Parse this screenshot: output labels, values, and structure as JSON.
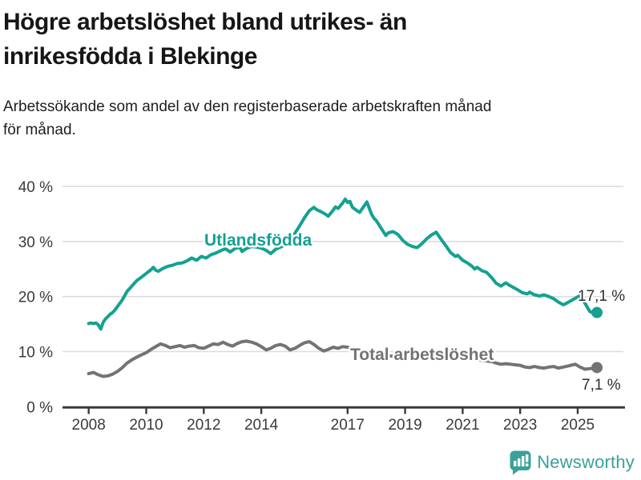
{
  "header": {
    "title_lines": [
      "Högre arbetslöshet bland utrikes- än",
      "inrikesfödda i Blekinge"
    ],
    "subtitle_lines": [
      "Arbetssökande som andel av den registerbaserade arbetskraften månad",
      "för månad."
    ]
  },
  "colors": {
    "accent_teal": "#14a191",
    "series_gray": "#737373",
    "gridline": "#dcdcdc",
    "axis": "#3a3a3a",
    "value_label_text": "#2e2e2e",
    "brand_teal": "#3aa19a"
  },
  "chart_data": {
    "type": "line",
    "x_unit": "decimal year (monthly samples)",
    "xlim": [
      2008,
      2026
    ],
    "ylim": [
      0,
      40
    ],
    "grid": "horizontal",
    "y_ticks": [
      {
        "v": 0,
        "label": "0 %"
      },
      {
        "v": 10,
        "label": "10 %"
      },
      {
        "v": 20,
        "label": "20 %"
      },
      {
        "v": 30,
        "label": "30 %"
      },
      {
        "v": 40,
        "label": "40 %"
      }
    ],
    "x_ticks": [
      {
        "t": 2008,
        "label": "2008"
      },
      {
        "t": 2010,
        "label": "2010"
      },
      {
        "t": 2012,
        "label": "2012"
      },
      {
        "t": 2014,
        "label": "2014"
      },
      {
        "t": 2017,
        "label": "2017"
      },
      {
        "t": 2019,
        "label": "2019"
      },
      {
        "t": 2021,
        "label": "2021"
      },
      {
        "t": 2023,
        "label": "2023"
      },
      {
        "t": 2025,
        "label": "2025"
      }
    ],
    "series": [
      {
        "name": "Utlandsfödda",
        "color": "#14a191",
        "end_label": "17,1 %",
        "end_value": 17.1,
        "points": [
          [
            2008.0,
            15.1
          ],
          [
            2008.08,
            15.2
          ],
          [
            2008.17,
            15.1
          ],
          [
            2008.25,
            15.2
          ],
          [
            2008.33,
            14.9
          ],
          [
            2008.42,
            14.1
          ],
          [
            2008.5,
            15.3
          ],
          [
            2008.58,
            15.9
          ],
          [
            2008.67,
            16.4
          ],
          [
            2008.75,
            16.8
          ],
          [
            2008.83,
            17.1
          ],
          [
            2008.92,
            17.6
          ],
          [
            2009.0,
            18.2
          ],
          [
            2009.17,
            19.4
          ],
          [
            2009.33,
            20.9
          ],
          [
            2009.5,
            21.9
          ],
          [
            2009.67,
            22.9
          ],
          [
            2009.83,
            23.5
          ],
          [
            2010.0,
            24.2
          ],
          [
            2010.17,
            24.9
          ],
          [
            2010.25,
            25.3
          ],
          [
            2010.33,
            24.8
          ],
          [
            2010.42,
            24.6
          ],
          [
            2010.58,
            25.1
          ],
          [
            2010.75,
            25.5
          ],
          [
            2010.92,
            25.7
          ],
          [
            2011.08,
            26.0
          ],
          [
            2011.25,
            26.1
          ],
          [
            2011.42,
            26.5
          ],
          [
            2011.58,
            27.0
          ],
          [
            2011.75,
            26.6
          ],
          [
            2011.92,
            27.3
          ],
          [
            2012.08,
            27.0
          ],
          [
            2012.25,
            27.6
          ],
          [
            2012.42,
            27.9
          ],
          [
            2012.58,
            28.3
          ],
          [
            2012.75,
            28.7
          ],
          [
            2012.92,
            28.1
          ],
          [
            2013.08,
            28.7
          ],
          [
            2013.25,
            29.0
          ],
          [
            2013.33,
            28.2
          ],
          [
            2013.5,
            28.8
          ],
          [
            2013.67,
            29.1
          ],
          [
            2013.83,
            29.0
          ],
          [
            2014.0,
            28.8
          ],
          [
            2014.17,
            28.4
          ],
          [
            2014.33,
            27.8
          ],
          [
            2014.5,
            28.6
          ],
          [
            2014.67,
            29.0
          ],
          [
            2014.83,
            29.4
          ],
          [
            2015.0,
            30.2
          ],
          [
            2015.17,
            31.5
          ],
          [
            2015.33,
            32.8
          ],
          [
            2015.5,
            34.3
          ],
          [
            2015.67,
            35.6
          ],
          [
            2015.83,
            36.2
          ],
          [
            2015.92,
            35.8
          ],
          [
            2016.08,
            35.4
          ],
          [
            2016.25,
            34.9
          ],
          [
            2016.33,
            34.6
          ],
          [
            2016.5,
            35.7
          ],
          [
            2016.58,
            36.3
          ],
          [
            2016.67,
            36.0
          ],
          [
            2016.83,
            37.0
          ],
          [
            2016.92,
            37.7
          ],
          [
            2017.0,
            37.1
          ],
          [
            2017.08,
            37.3
          ],
          [
            2017.17,
            36.2
          ],
          [
            2017.33,
            35.6
          ],
          [
            2017.42,
            35.3
          ],
          [
            2017.58,
            36.5
          ],
          [
            2017.67,
            37.2
          ],
          [
            2017.83,
            35.0
          ],
          [
            2017.92,
            34.2
          ],
          [
            2018.0,
            33.8
          ],
          [
            2018.17,
            32.4
          ],
          [
            2018.33,
            31.1
          ],
          [
            2018.42,
            31.6
          ],
          [
            2018.58,
            31.8
          ],
          [
            2018.75,
            31.3
          ],
          [
            2018.92,
            30.2
          ],
          [
            2019.08,
            29.5
          ],
          [
            2019.25,
            29.1
          ],
          [
            2019.42,
            28.9
          ],
          [
            2019.58,
            29.6
          ],
          [
            2019.75,
            30.5
          ],
          [
            2019.92,
            31.2
          ],
          [
            2020.08,
            31.7
          ],
          [
            2020.25,
            30.4
          ],
          [
            2020.42,
            29.2
          ],
          [
            2020.58,
            28.0
          ],
          [
            2020.75,
            27.3
          ],
          [
            2020.83,
            27.5
          ],
          [
            2021.0,
            26.6
          ],
          [
            2021.17,
            26.1
          ],
          [
            2021.33,
            25.5
          ],
          [
            2021.42,
            25.0
          ],
          [
            2021.5,
            25.3
          ],
          [
            2021.67,
            24.7
          ],
          [
            2021.83,
            24.4
          ],
          [
            2022.0,
            23.5
          ],
          [
            2022.17,
            22.4
          ],
          [
            2022.33,
            21.9
          ],
          [
            2022.5,
            22.5
          ],
          [
            2022.58,
            22.2
          ],
          [
            2022.75,
            21.7
          ],
          [
            2022.92,
            21.2
          ],
          [
            2023.08,
            20.7
          ],
          [
            2023.25,
            20.5
          ],
          [
            2023.33,
            20.8
          ],
          [
            2023.5,
            20.3
          ],
          [
            2023.67,
            20.1
          ],
          [
            2023.83,
            20.3
          ],
          [
            2024.0,
            20.0
          ],
          [
            2024.17,
            19.6
          ],
          [
            2024.33,
            19.0
          ],
          [
            2024.5,
            18.5
          ],
          [
            2024.58,
            18.7
          ],
          [
            2024.75,
            19.2
          ],
          [
            2024.92,
            19.7
          ],
          [
            2025.08,
            20.2
          ],
          [
            2025.25,
            18.8
          ],
          [
            2025.42,
            17.3
          ],
          [
            2025.58,
            16.9
          ],
          [
            2025.67,
            17.1
          ]
        ]
      },
      {
        "name": "Total arbetslöshet",
        "color": "#737373",
        "end_label": "7,1 %",
        "end_value": 7.1,
        "points": [
          [
            2008.0,
            6.0
          ],
          [
            2008.17,
            6.2
          ],
          [
            2008.33,
            5.8
          ],
          [
            2008.5,
            5.5
          ],
          [
            2008.67,
            5.6
          ],
          [
            2008.83,
            5.9
          ],
          [
            2009.0,
            6.4
          ],
          [
            2009.17,
            7.1
          ],
          [
            2009.33,
            7.9
          ],
          [
            2009.5,
            8.5
          ],
          [
            2009.67,
            9.0
          ],
          [
            2009.83,
            9.4
          ],
          [
            2010.0,
            9.8
          ],
          [
            2010.17,
            10.4
          ],
          [
            2010.33,
            10.9
          ],
          [
            2010.5,
            11.4
          ],
          [
            2010.67,
            11.1
          ],
          [
            2010.83,
            10.7
          ],
          [
            2011.0,
            10.9
          ],
          [
            2011.17,
            11.1
          ],
          [
            2011.33,
            10.8
          ],
          [
            2011.5,
            11.0
          ],
          [
            2011.67,
            11.1
          ],
          [
            2011.83,
            10.7
          ],
          [
            2012.0,
            10.6
          ],
          [
            2012.17,
            11.0
          ],
          [
            2012.33,
            11.4
          ],
          [
            2012.5,
            11.3
          ],
          [
            2012.67,
            11.7
          ],
          [
            2012.83,
            11.3
          ],
          [
            2013.0,
            11.0
          ],
          [
            2013.17,
            11.5
          ],
          [
            2013.33,
            11.8
          ],
          [
            2013.5,
            11.9
          ],
          [
            2013.67,
            11.7
          ],
          [
            2013.83,
            11.4
          ],
          [
            2014.0,
            10.9
          ],
          [
            2014.17,
            10.3
          ],
          [
            2014.33,
            10.6
          ],
          [
            2014.5,
            11.1
          ],
          [
            2014.67,
            11.3
          ],
          [
            2014.83,
            11.0
          ],
          [
            2015.0,
            10.3
          ],
          [
            2015.17,
            10.6
          ],
          [
            2015.33,
            11.1
          ],
          [
            2015.5,
            11.6
          ],
          [
            2015.67,
            11.8
          ],
          [
            2015.83,
            11.3
          ],
          [
            2016.0,
            10.6
          ],
          [
            2016.17,
            10.1
          ],
          [
            2016.33,
            10.4
          ],
          [
            2016.5,
            10.8
          ],
          [
            2016.67,
            10.6
          ],
          [
            2016.83,
            10.9
          ],
          [
            2017.0,
            10.8
          ],
          [
            2017.25,
            10.4
          ],
          [
            2017.5,
            10.1
          ],
          [
            2017.75,
            9.9
          ],
          [
            2018.0,
            9.6
          ],
          [
            2018.33,
            9.3
          ],
          [
            2018.67,
            9.1
          ],
          [
            2019.0,
            8.9
          ],
          [
            2019.33,
            8.8
          ],
          [
            2019.67,
            9.0
          ],
          [
            2020.0,
            9.3
          ],
          [
            2020.25,
            9.8
          ],
          [
            2020.5,
            9.6
          ],
          [
            2020.75,
            9.3
          ],
          [
            2021.0,
            9.0
          ],
          [
            2021.33,
            8.7
          ],
          [
            2021.67,
            8.4
          ],
          [
            2022.0,
            8.2
          ],
          [
            2022.17,
            7.9
          ],
          [
            2022.33,
            7.7
          ],
          [
            2022.5,
            7.8
          ],
          [
            2022.67,
            7.7
          ],
          [
            2022.83,
            7.6
          ],
          [
            2023.0,
            7.5
          ],
          [
            2023.17,
            7.2
          ],
          [
            2023.33,
            7.1
          ],
          [
            2023.5,
            7.3
          ],
          [
            2023.67,
            7.1
          ],
          [
            2023.83,
            7.0
          ],
          [
            2024.0,
            7.2
          ],
          [
            2024.17,
            7.3
          ],
          [
            2024.33,
            7.0
          ],
          [
            2024.5,
            7.2
          ],
          [
            2024.67,
            7.4
          ],
          [
            2024.83,
            7.6
          ],
          [
            2024.92,
            7.7
          ],
          [
            2025.08,
            7.2
          ],
          [
            2025.25,
            6.8
          ],
          [
            2025.42,
            6.9
          ],
          [
            2025.58,
            7.0
          ],
          [
            2025.67,
            7.1
          ]
        ]
      }
    ]
  },
  "footer": {
    "brand": "Newsworthy"
  }
}
